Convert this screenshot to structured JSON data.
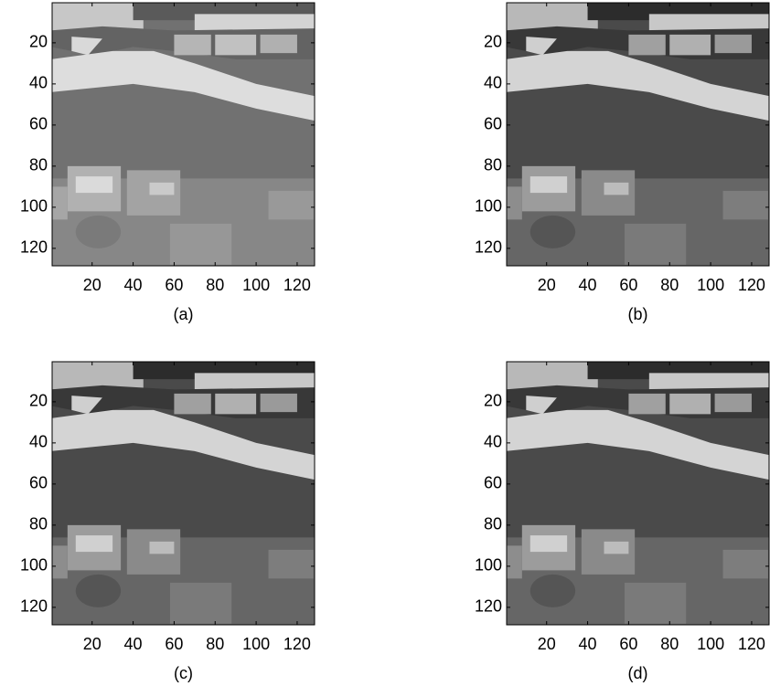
{
  "chart_data": [
    {
      "type": "image",
      "caption": "(a)",
      "xlim": [
        0.5,
        128.5
      ],
      "ylim": [
        0.5,
        128.5
      ],
      "xticks": [
        20,
        40,
        60,
        80,
        100,
        120
      ],
      "yticks": [
        20,
        40,
        60,
        80,
        100,
        120
      ]
    },
    {
      "type": "image",
      "caption": "(b)",
      "xlim": [
        0.5,
        128.5
      ],
      "ylim": [
        0.5,
        128.5
      ],
      "xticks": [
        20,
        40,
        60,
        80,
        100,
        120
      ],
      "yticks": [
        20,
        40,
        60,
        80,
        100,
        120
      ]
    },
    {
      "type": "image",
      "caption": "(c)",
      "xlim": [
        0.5,
        128.5
      ],
      "ylim": [
        0.5,
        128.5
      ],
      "xticks": [
        20,
        40,
        60,
        80,
        100,
        120
      ],
      "yticks": [
        20,
        40,
        60,
        80,
        100,
        120
      ]
    },
    {
      "type": "image",
      "caption": "(d)",
      "xlim": [
        0.5,
        128.5
      ],
      "ylim": [
        0.5,
        128.5
      ],
      "xticks": [
        20,
        40,
        60,
        80,
        100,
        120
      ],
      "yticks": [
        20,
        40,
        60,
        80,
        100,
        120
      ]
    }
  ]
}
